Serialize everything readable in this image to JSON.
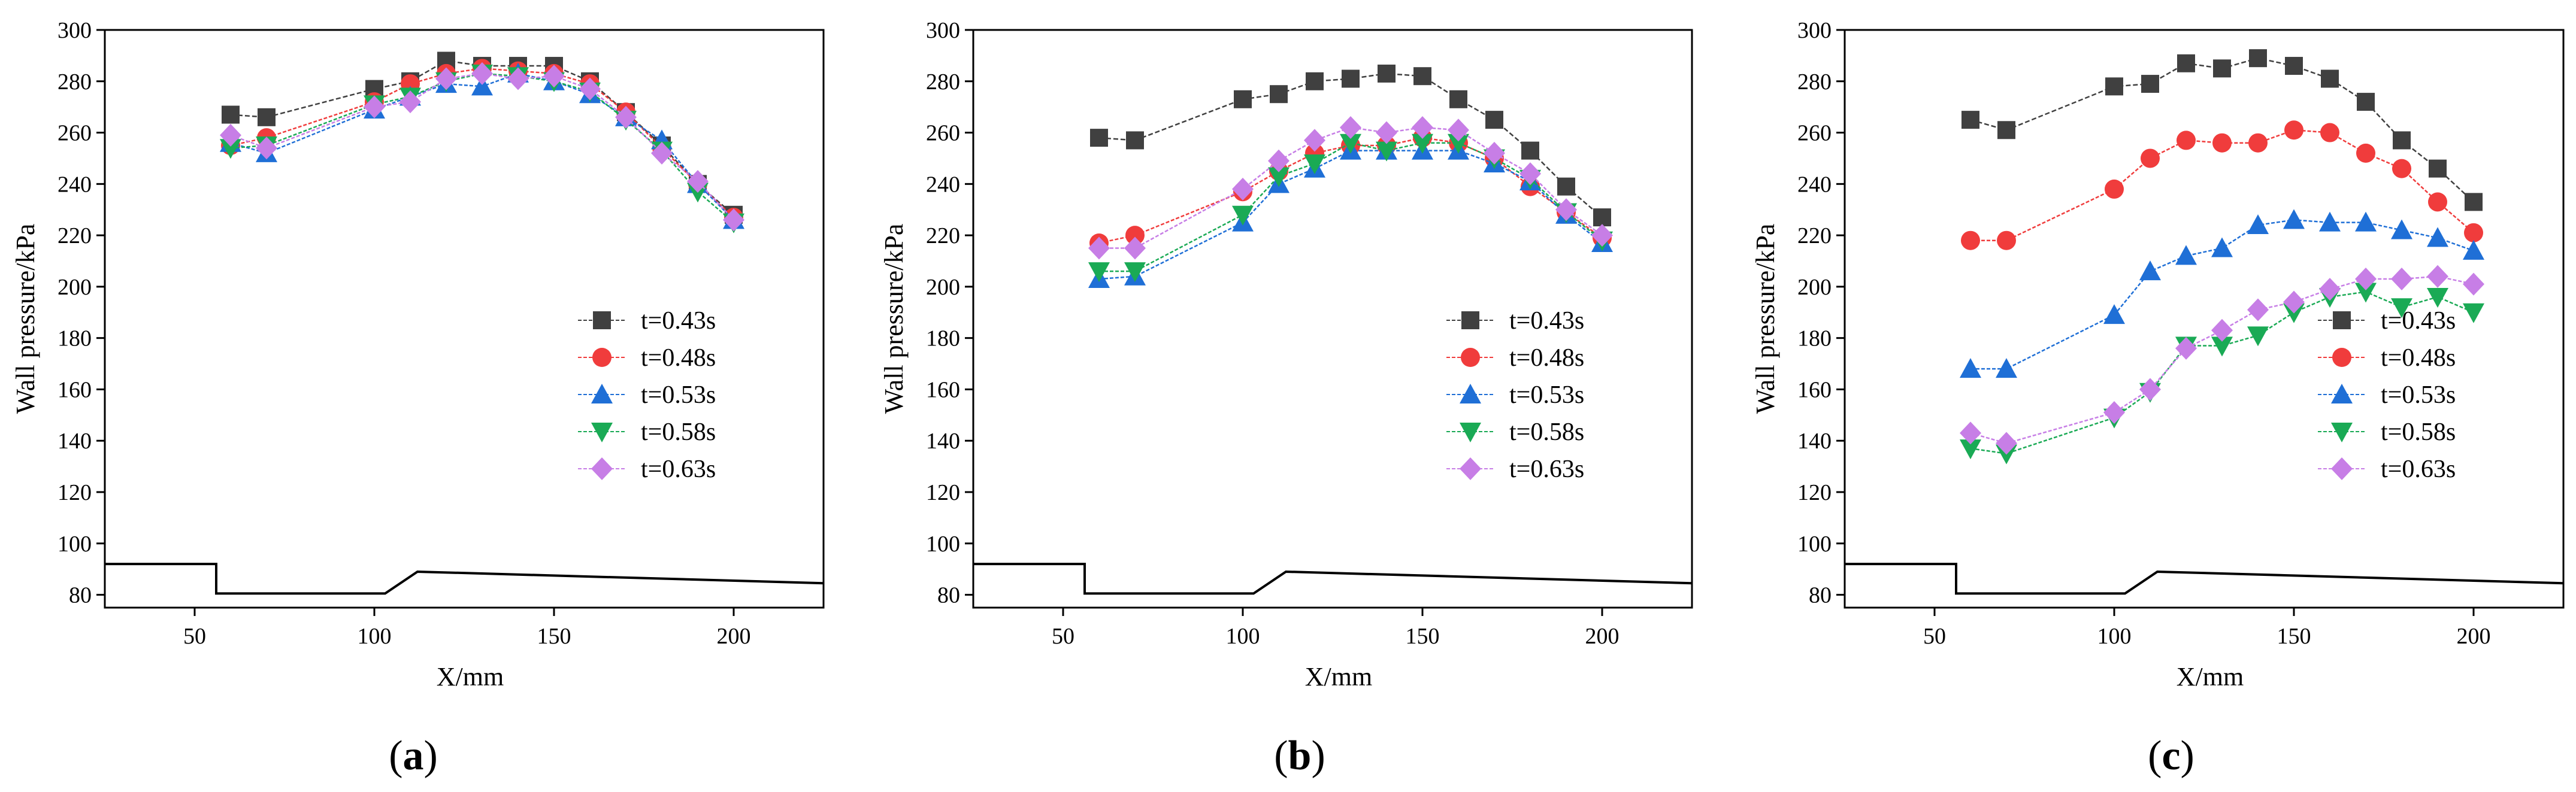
{
  "figure": {
    "captions": [
      {
        "open": "(",
        "letter": "a",
        "close": ")"
      },
      {
        "open": "(",
        "letter": "b",
        "close": ")"
      },
      {
        "open": "(",
        "letter": "c",
        "close": ")"
      }
    ]
  },
  "chart_data": [
    {
      "type": "line",
      "panel": "a",
      "xlabel": "X/mm",
      "ylabel": "Wall pressure/kPa",
      "xlim": [
        25,
        225
      ],
      "ylim": [
        75,
        300
      ],
      "xticks": [
        50,
        100,
        150,
        200
      ],
      "yticks": [
        80,
        100,
        120,
        140,
        160,
        180,
        200,
        220,
        240,
        260,
        280,
        300
      ],
      "x": [
        60,
        70,
        100,
        110,
        120,
        130,
        140,
        150,
        160,
        170,
        180,
        190,
        200
      ],
      "legend_position": "bottom-right",
      "series": [
        {
          "name": "t=0.43s",
          "marker": "square",
          "color": "#404040",
          "values": [
            267,
            266,
            277,
            280,
            288,
            286,
            286,
            286,
            280,
            268,
            255,
            240,
            228
          ]
        },
        {
          "name": "t=0.48s",
          "marker": "circle",
          "color": "#f03c3c",
          "values": [
            255,
            258,
            272,
            279,
            283,
            285,
            284,
            283,
            279,
            268,
            254,
            240,
            227
          ]
        },
        {
          "name": "t=0.53s",
          "marker": "triangle-up",
          "color": "#1f6fd6",
          "values": [
            256,
            252,
            269,
            274,
            279,
            278,
            283,
            280,
            275,
            266,
            257,
            240,
            226
          ]
        },
        {
          "name": "t=0.58s",
          "marker": "triangle-down",
          "color": "#1aaa55",
          "values": [
            254,
            255,
            271,
            274,
            280,
            283,
            282,
            280,
            276,
            265,
            253,
            237,
            225
          ]
        },
        {
          "name": "t=0.63s",
          "marker": "diamond",
          "color": "#c77ee6",
          "values": [
            259,
            254,
            270,
            272,
            281,
            283,
            281,
            282,
            277,
            266,
            252,
            241,
            226
          ]
        }
      ],
      "geometry_profile": {
        "x": [
          25,
          56,
          56,
          103,
          112,
          225
        ],
        "y": [
          92,
          92,
          80.5,
          80.5,
          89,
          84.5
        ]
      }
    },
    {
      "type": "line",
      "panel": "b",
      "xlabel": "X/mm",
      "ylabel": "Wall pressure/kPa",
      "xlim": [
        25,
        225
      ],
      "ylim": [
        75,
        300
      ],
      "xticks": [
        50,
        100,
        150,
        200
      ],
      "yticks": [
        80,
        100,
        120,
        140,
        160,
        180,
        200,
        220,
        240,
        260,
        280,
        300
      ],
      "x": [
        60,
        70,
        100,
        110,
        120,
        130,
        140,
        150,
        160,
        170,
        180,
        190,
        200
      ],
      "legend_position": "bottom-right",
      "series": [
        {
          "name": "t=0.43s",
          "marker": "square",
          "color": "#404040",
          "values": [
            258,
            257,
            273,
            275,
            280,
            281,
            283,
            282,
            273,
            265,
            253,
            239,
            227
          ]
        },
        {
          "name": "t=0.48s",
          "marker": "circle",
          "color": "#f03c3c",
          "values": [
            217,
            220,
            237,
            245,
            252,
            255,
            255,
            258,
            256,
            250,
            239,
            229,
            219
          ]
        },
        {
          "name": "t=0.53s",
          "marker": "triangle-up",
          "color": "#1f6fd6",
          "values": [
            203,
            204,
            225,
            240,
            246,
            253,
            253,
            253,
            253,
            248,
            241,
            228,
            217
          ]
        },
        {
          "name": "t=0.58s",
          "marker": "triangle-down",
          "color": "#1aaa55",
          "values": [
            206,
            206,
            228,
            243,
            248,
            256,
            253,
            256,
            256,
            250,
            242,
            229,
            218
          ]
        },
        {
          "name": "t=0.63s",
          "marker": "diamond",
          "color": "#c77ee6",
          "values": [
            215,
            215,
            238,
            249,
            257,
            262,
            260,
            262,
            261,
            252,
            244,
            230,
            220
          ]
        }
      ],
      "geometry_profile": {
        "x": [
          25,
          56,
          56,
          103,
          112,
          225
        ],
        "y": [
          92,
          92,
          80.5,
          80.5,
          89,
          84.5
        ]
      }
    },
    {
      "type": "line",
      "panel": "c",
      "xlabel": "X/mm",
      "ylabel": "Wall pressure/kPa",
      "xlim": [
        25,
        225
      ],
      "ylim": [
        75,
        300
      ],
      "xticks": [
        50,
        100,
        150,
        200
      ],
      "yticks": [
        80,
        100,
        120,
        140,
        160,
        180,
        200,
        220,
        240,
        260,
        280,
        300
      ],
      "x": [
        60,
        70,
        100,
        110,
        120,
        130,
        140,
        150,
        160,
        170,
        180,
        190,
        200
      ],
      "legend_position": "bottom-right",
      "series": [
        {
          "name": "t=0.43s",
          "marker": "square",
          "color": "#404040",
          "values": [
            265,
            261,
            278,
            279,
            287,
            285,
            289,
            286,
            281,
            272,
            257,
            246,
            233
          ]
        },
        {
          "name": "t=0.48s",
          "marker": "circle",
          "color": "#f03c3c",
          "values": [
            218,
            218,
            238,
            250,
            257,
            256,
            256,
            261,
            260,
            252,
            246,
            233,
            221
          ]
        },
        {
          "name": "t=0.53s",
          "marker": "triangle-up",
          "color": "#1f6fd6",
          "values": [
            168,
            168,
            189,
            206,
            212,
            215,
            224,
            226,
            225,
            225,
            222,
            219,
            214
          ]
        },
        {
          "name": "t=0.58s",
          "marker": "triangle-down",
          "color": "#1aaa55",
          "values": [
            137,
            135,
            149,
            159,
            177,
            177,
            181,
            190,
            196,
            198,
            192,
            196,
            190
          ]
        },
        {
          "name": "t=0.63s",
          "marker": "diamond",
          "color": "#c77ee6",
          "values": [
            143,
            139,
            151,
            160,
            176,
            183,
            191,
            194,
            199,
            203,
            203,
            204,
            201
          ]
        }
      ],
      "geometry_profile": {
        "x": [
          25,
          56,
          56,
          103,
          112,
          225
        ],
        "y": [
          92,
          92,
          80.5,
          80.5,
          89,
          84.5
        ]
      }
    }
  ]
}
